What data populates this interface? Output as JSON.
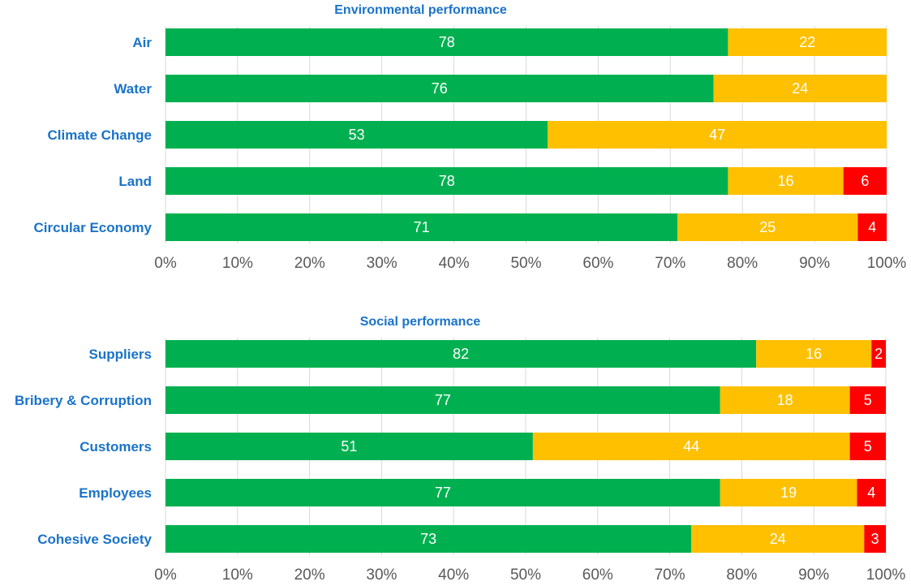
{
  "colors": {
    "text_blue": "#1a73c8",
    "grid": "#d9d9d9",
    "tick_text": "#595959",
    "good": "#00b050",
    "medium": "#ffc000",
    "poor": "#ff0000",
    "label_text": "#ffffff"
  },
  "chart_data": [
    {
      "type": "bar",
      "orientation": "horizontal",
      "stacked": true,
      "title": "Environmental performance",
      "categories": [
        "Air",
        "Water",
        "Climate Change",
        "Land",
        "Circular Economy"
      ],
      "series": [
        {
          "color": "#00b050",
          "values": [
            78,
            76,
            53,
            78,
            71
          ]
        },
        {
          "color": "#ffc000",
          "values": [
            22,
            24,
            47,
            16,
            25
          ]
        },
        {
          "color": "#ff0000",
          "values": [
            0,
            0,
            0,
            6,
            4
          ]
        }
      ],
      "xlim": [
        0,
        100
      ],
      "xticks": [
        "0%",
        "10%",
        "20%",
        "30%",
        "40%",
        "50%",
        "60%",
        "70%",
        "80%",
        "90%",
        "100%"
      ],
      "grid": true
    },
    {
      "type": "bar",
      "orientation": "horizontal",
      "stacked": true,
      "title": "Social performance",
      "categories": [
        "Suppliers",
        "Bribery & Corruption",
        "Customers",
        "Employees",
        "Cohesive Society"
      ],
      "series": [
        {
          "color": "#00b050",
          "values": [
            82,
            77,
            51,
            77,
            73
          ]
        },
        {
          "color": "#ffc000",
          "values": [
            16,
            18,
            44,
            19,
            24
          ]
        },
        {
          "color": "#ff0000",
          "values": [
            2,
            5,
            5,
            4,
            3
          ]
        }
      ],
      "xlim": [
        0,
        100
      ],
      "xticks": [
        "0%",
        "10%",
        "20%",
        "30%",
        "40%",
        "50%",
        "60%",
        "70%",
        "80%",
        "90%",
        "100%"
      ],
      "grid": true
    }
  ]
}
